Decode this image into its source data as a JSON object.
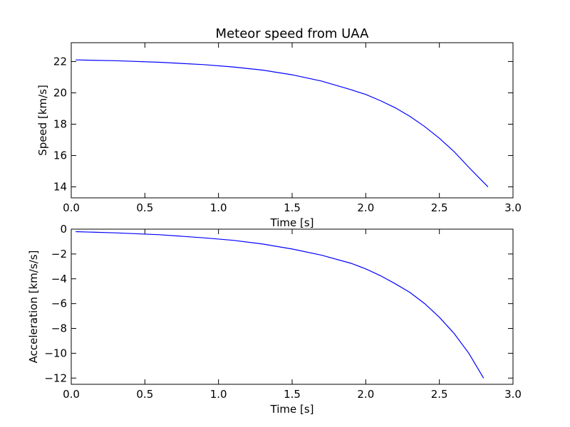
{
  "chart_data": [
    {
      "type": "line",
      "title": "Meteor speed from  UAA",
      "xlabel": "Time [s]",
      "ylabel": "Speed [km/s]",
      "xlim": [
        0.0,
        3.0
      ],
      "ylim": [
        13.3,
        23.2
      ],
      "xticks": [
        "0.0",
        "0.5",
        "1.0",
        "1.5",
        "2.0",
        "2.5",
        "3.0"
      ],
      "yticks": [
        "14",
        "16",
        "18",
        "20",
        "22"
      ],
      "grid": false,
      "series": [
        {
          "color": "#0000ff",
          "x": [
            0.03,
            0.3,
            0.6,
            0.9,
            1.1,
            1.3,
            1.5,
            1.7,
            1.9,
            2.0,
            2.1,
            2.2,
            2.3,
            2.4,
            2.5,
            2.6,
            2.7,
            2.83
          ],
          "y": [
            22.1,
            22.05,
            21.95,
            21.8,
            21.65,
            21.45,
            21.15,
            20.75,
            20.2,
            19.9,
            19.5,
            19.05,
            18.5,
            17.85,
            17.1,
            16.25,
            15.25,
            14.0
          ]
        }
      ]
    },
    {
      "type": "line",
      "title": "",
      "xlabel": "Time [s]",
      "ylabel": "Acceleration [km/s/s]",
      "xlim": [
        0.0,
        3.0
      ],
      "ylim": [
        -12.5,
        0.0
      ],
      "xticks": [
        "0.0",
        "0.5",
        "1.0",
        "1.5",
        "2.0",
        "2.5",
        "3.0"
      ],
      "yticks": [
        "0",
        "−2",
        "−4",
        "−6",
        "−8",
        "−10",
        "−12"
      ],
      "grid": false,
      "series": [
        {
          "color": "#0000ff",
          "x": [
            0.03,
            0.3,
            0.6,
            0.9,
            1.1,
            1.3,
            1.5,
            1.7,
            1.9,
            2.0,
            2.1,
            2.2,
            2.3,
            2.4,
            2.5,
            2.6,
            2.7,
            2.8
          ],
          "y": [
            -0.2,
            -0.3,
            -0.45,
            -0.7,
            -0.9,
            -1.2,
            -1.6,
            -2.1,
            -2.75,
            -3.2,
            -3.75,
            -4.4,
            -5.1,
            -6.0,
            -7.1,
            -8.4,
            -10.0,
            -12.0
          ]
        }
      ]
    }
  ]
}
